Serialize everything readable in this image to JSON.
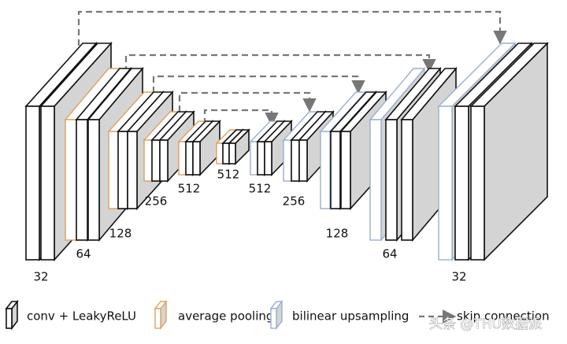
{
  "stage_labels": [
    "32",
    "64",
    "128",
    "256",
    "512",
    "512",
    "512",
    "256",
    "128",
    "64",
    "32"
  ],
  "legend": [
    "conv + LeakyReLU",
    "average pooling",
    "bilinear upsampling",
    "skip connection"
  ],
  "watermark": "头条 @THU数据派"
}
